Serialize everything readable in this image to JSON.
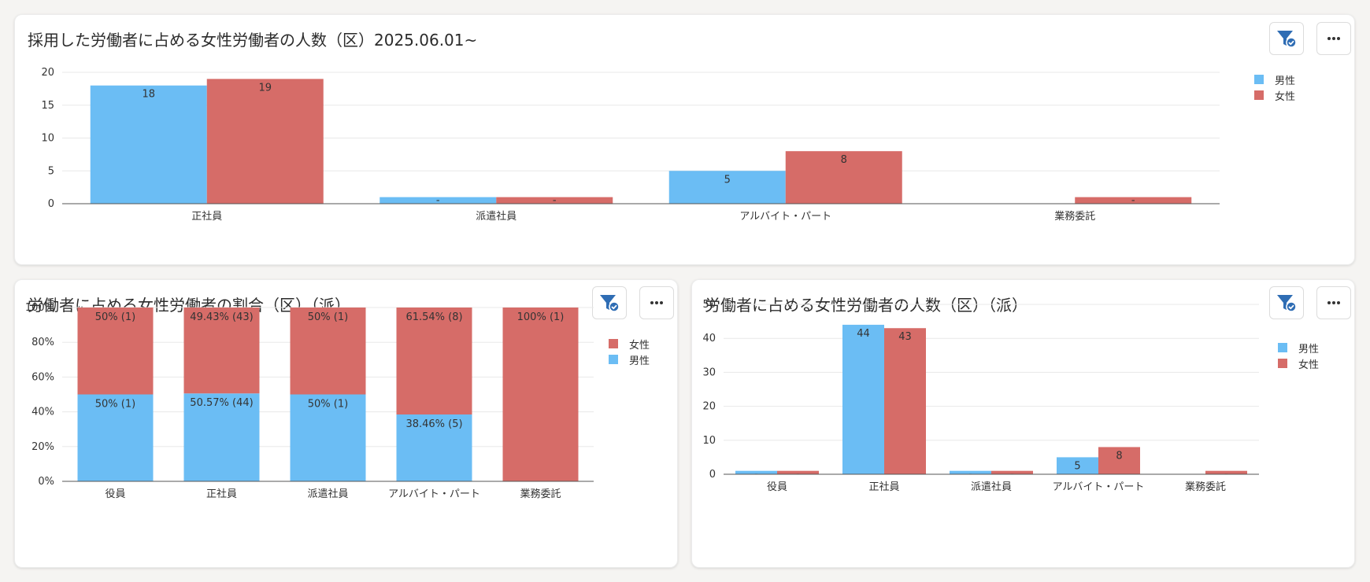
{
  "colors": {
    "male": "#6bbdf4",
    "female": "#d66c68",
    "grid": "#e8e8e8",
    "axis": "#555555",
    "icon": "#2f6db4"
  },
  "icons": {
    "filter": "filter-check-icon",
    "more": "more-horizontal-icon"
  },
  "chart_data": [
    {
      "id": "chart1",
      "type": "bar",
      "title": "採用した労働者に占める女性労働者の人数（区）2025.06.01~",
      "categories": [
        "正社員",
        "派遣社員",
        "アルバイト・パート",
        "業務委託"
      ],
      "series": [
        {
          "name": "男性",
          "key": "male",
          "values": [
            18,
            1,
            5,
            0
          ],
          "labels": [
            "18",
            "-",
            "5",
            ""
          ]
        },
        {
          "name": "女性",
          "key": "female",
          "values": [
            19,
            1,
            8,
            1
          ],
          "labels": [
            "19",
            "-",
            "8",
            "-"
          ]
        }
      ],
      "ylim": [
        0,
        20
      ],
      "yticks": [
        "0",
        "5",
        "10",
        "15",
        "20"
      ],
      "grid": true,
      "legend_position": "right",
      "legend": [
        "男性",
        "女性"
      ]
    },
    {
      "id": "chart2",
      "type": "bar",
      "stacked": true,
      "title": "労働者に占める女性労働者の割合（区）（派）",
      "categories": [
        "役員",
        "正社員",
        "派遣社員",
        "アルバイト・パート",
        "業務委託"
      ],
      "series": [
        {
          "name": "男性",
          "key": "male",
          "values": [
            50,
            50.57,
            50,
            38.46,
            0
          ],
          "labels": [
            "50% (1)",
            "50.57% (44)",
            "50% (1)",
            "38.46% (5)",
            ""
          ]
        },
        {
          "name": "女性",
          "key": "female",
          "values": [
            50,
            49.43,
            50,
            61.54,
            100
          ],
          "labels": [
            "50% (1)",
            "49.43% (43)",
            "50% (1)",
            "61.54% (8)",
            "100% (1)"
          ]
        }
      ],
      "ylim": [
        0,
        100
      ],
      "yticks": [
        "0%",
        "20%",
        "40%",
        "60%",
        "80%",
        "100%"
      ],
      "grid": true,
      "legend_position": "right",
      "legend": [
        "女性",
        "男性"
      ]
    },
    {
      "id": "chart3",
      "type": "bar",
      "title": "労働者に占める女性労働者の人数（区）（派）",
      "categories": [
        "役員",
        "正社員",
        "派遣社員",
        "アルバイト・パート",
        "業務委託"
      ],
      "series": [
        {
          "name": "男性",
          "key": "male",
          "values": [
            1,
            44,
            1,
            5,
            0
          ],
          "labels": [
            "-",
            "44",
            "-",
            "5",
            ""
          ]
        },
        {
          "name": "女性",
          "key": "female",
          "values": [
            1,
            43,
            1,
            8,
            1
          ],
          "labels": [
            "-",
            "43",
            "-",
            "8",
            "-"
          ]
        }
      ],
      "ylim": [
        0,
        50
      ],
      "yticks": [
        "0",
        "10",
        "20",
        "30",
        "40",
        "50"
      ],
      "grid": true,
      "legend_position": "right",
      "legend": [
        "男性",
        "女性"
      ]
    }
  ]
}
